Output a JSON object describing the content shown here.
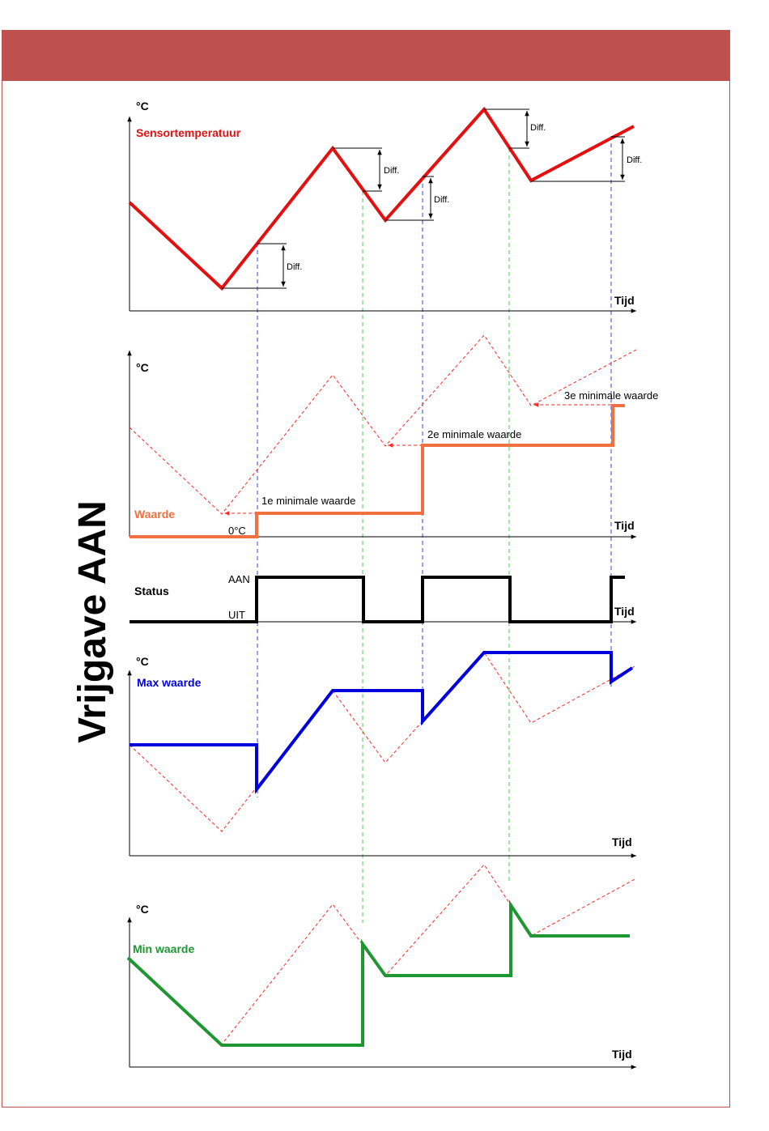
{
  "colors": {
    "header": "#c0504d",
    "sensor": "#e3100f",
    "waarde": "#f07040",
    "status": "#000000",
    "max": "#0000dd",
    "min": "#1e9632",
    "ghost": "#ff2a2a",
    "guide_blue": "#3344dd",
    "guide_green": "#44cc55"
  },
  "side_title": "Vrijgave AAN",
  "panels": {
    "sensor": {
      "unit": "°C",
      "label": "Sensortemperatuur",
      "axis_x": "Tijd",
      "diff_label": "Diff."
    },
    "waarde": {
      "unit": "°C",
      "label": "Waarde",
      "axis_x": "Tijd",
      "zero_label": "0°C",
      "step_labels": [
        "1e minimale waarde",
        "2e minimale waarde",
        "3e minimale waarde"
      ]
    },
    "status": {
      "label": "Status",
      "on_label": "AAN",
      "off_label": "UIT",
      "axis_x": "Tijd"
    },
    "max": {
      "unit": "°C",
      "label": "Max waarde",
      "axis_x": "Tijd"
    },
    "min": {
      "unit": "°C",
      "label": "Min waarde",
      "axis_x": "Tijd"
    }
  }
}
